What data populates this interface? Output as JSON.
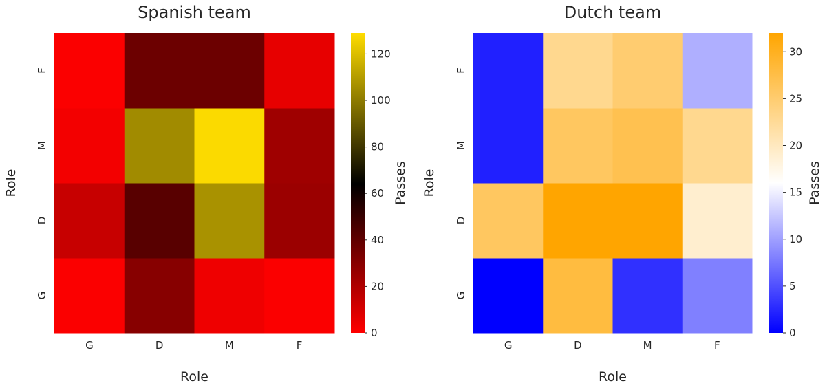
{
  "chart_data": [
    {
      "type": "heatmap",
      "title": "Spanish team",
      "xlabel": "Role",
      "ylabel": "Role",
      "x_categories": [
        "G",
        "D",
        "M",
        "F"
      ],
      "y_categories": [
        "G",
        "D",
        "M",
        "F"
      ],
      "rows_bottom_to_top": [
        [
          1,
          30,
          4,
          1
        ],
        [
          14,
          42,
          107,
          25
        ],
        [
          3,
          105,
          128,
          24
        ],
        [
          1,
          37,
          37,
          6
        ]
      ],
      "colorbar": {
        "label": "Passes",
        "range": [
          0,
          129
        ],
        "ticks": [
          0,
          20,
          40,
          60,
          80,
          100,
          120
        ],
        "colormap_stops": [
          {
            "v": 0,
            "color": "#ff0000"
          },
          {
            "v": 64,
            "color": "#000000"
          },
          {
            "v": 129,
            "color": "#ffdd00"
          }
        ]
      },
      "grid": false
    },
    {
      "type": "heatmap",
      "title": "Dutch team",
      "xlabel": "Role",
      "ylabel": "Role",
      "x_categories": [
        "G",
        "D",
        "M",
        "F"
      ],
      "y_categories": [
        "G",
        "D",
        "M",
        "F"
      ],
      "rows_bottom_to_top": [
        [
          0,
          28,
          3,
          8
        ],
        [
          26,
          32,
          32,
          19
        ],
        [
          2,
          26,
          27,
          23
        ],
        [
          2,
          23,
          25,
          11
        ]
      ],
      "colorbar": {
        "label": "Passes",
        "range": [
          0,
          32
        ],
        "ticks": [
          0,
          5,
          10,
          15,
          20,
          25,
          30
        ],
        "colormap_stops": [
          {
            "v": 0,
            "color": "#0000ff"
          },
          {
            "v": 16,
            "color": "#ffffff"
          },
          {
            "v": 32,
            "color": "#ffa500"
          }
        ]
      },
      "grid": false
    }
  ]
}
